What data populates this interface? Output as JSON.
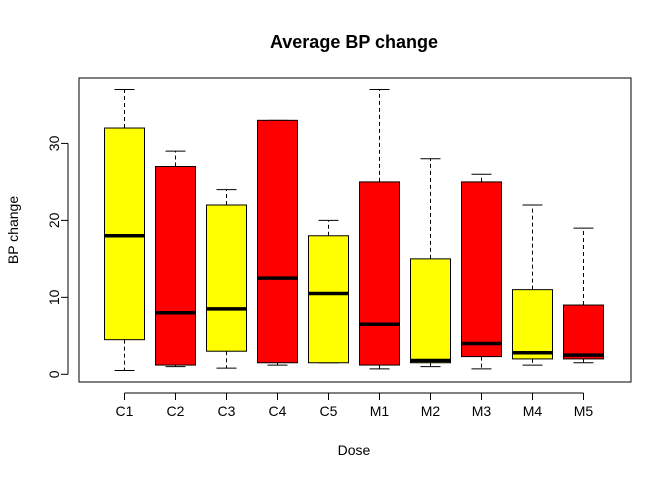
{
  "chart_data": {
    "type": "box",
    "title": "Average BP change",
    "xlabel": "Dose",
    "ylabel": "BP change",
    "ylim": [
      -1,
      38.5
    ],
    "yticks": [
      0,
      10,
      20,
      30
    ],
    "grid": false,
    "legend": "none",
    "categories": [
      "C1",
      "C2",
      "C3",
      "C4",
      "C5",
      "M1",
      "M2",
      "M3",
      "M4",
      "M5"
    ],
    "boxes": [
      {
        "label": "C1",
        "min": 0.5,
        "q1": 4.5,
        "median": 18,
        "q3": 32,
        "max": 37,
        "color": "#FFFF00"
      },
      {
        "label": "C2",
        "min": 1.0,
        "q1": 1.2,
        "median": 8,
        "q3": 27,
        "max": 29,
        "color": "#FF0000"
      },
      {
        "label": "C3",
        "min": 0.8,
        "q1": 3.0,
        "median": 8.5,
        "q3": 22,
        "max": 24,
        "color": "#FFFF00"
      },
      {
        "label": "C4",
        "min": 1.2,
        "q1": 1.5,
        "median": 12.5,
        "q3": 33,
        "max": 33,
        "color": "#FF0000"
      },
      {
        "label": "C5",
        "min": 1.5,
        "q1": 1.5,
        "median": 10.5,
        "q3": 18,
        "max": 20,
        "color": "#FFFF00"
      },
      {
        "label": "M1",
        "min": 0.7,
        "q1": 1.2,
        "median": 6.5,
        "q3": 25,
        "max": 37,
        "color": "#FF0000"
      },
      {
        "label": "M2",
        "min": 1.0,
        "q1": 1.5,
        "median": 1.8,
        "q3": 15,
        "max": 28,
        "color": "#FFFF00"
      },
      {
        "label": "M3",
        "min": 0.7,
        "q1": 2.3,
        "median": 4.0,
        "q3": 25,
        "max": 26,
        "color": "#FF0000"
      },
      {
        "label": "M4",
        "min": 1.2,
        "q1": 2.0,
        "median": 2.8,
        "q3": 11,
        "max": 22,
        "color": "#FFFF00"
      },
      {
        "label": "M5",
        "min": 1.5,
        "q1": 2.0,
        "median": 2.5,
        "q3": 9,
        "max": 19,
        "color": "#FF0000"
      }
    ]
  }
}
